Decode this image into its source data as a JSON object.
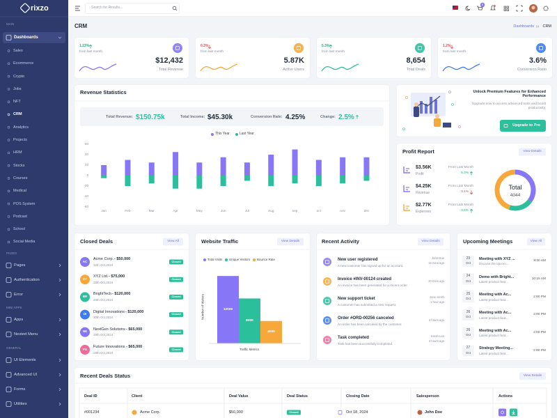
{
  "sidebar": {
    "logo": "rixzo",
    "main": {
      "title": "MAIN",
      "item": "Dashboards",
      "children": [
        "Sales",
        "Ecommerce",
        "Crypto",
        "Jobs",
        "NFT",
        "CRM",
        "Analytics",
        "Projects",
        "HRM",
        "Stocks",
        "Courses",
        "Medical",
        "POS System",
        "Podcast",
        "School",
        "Social Media"
      ]
    },
    "groups": [
      {
        "title": "PAGES",
        "items": [
          "Pages",
          "Authentication",
          "Error"
        ]
      },
      {
        "title": "MINI APPS",
        "items": [
          "Apps",
          "Nested Menu"
        ]
      },
      {
        "title": "GENERAL",
        "items": [
          "UI Elements",
          "Advanced UI",
          "Forms",
          "Utilities"
        ]
      }
    ]
  },
  "header": {
    "search_placeholder": "Search for Results...",
    "cart_badge": "5"
  },
  "page": {
    "title": "CRM",
    "breadcrumb": [
      "Dashboards",
      "CRM"
    ]
  },
  "stats": [
    {
      "change": "1.23%",
      "direction": "up",
      "period": "from last month",
      "value": "$12,432",
      "label": "Total Revenue",
      "color": "#8777f6"
    },
    {
      "change": "0.3%",
      "direction": "down",
      "period": "from last month",
      "value": "5.87K",
      "label": "Active Users",
      "color": "#f7a83b"
    },
    {
      "change": "5.3%",
      "direction": "up",
      "period": "from last month",
      "value": "8,654",
      "label": "Total Deals",
      "color": "#2cbf9c"
    },
    {
      "change": "1.2%",
      "direction": "down",
      "period": "from last month",
      "value": "3.6%",
      "label": "Conversion Ratio",
      "color": "#3d7bf0"
    }
  ],
  "revenue": {
    "title": "Revenue Statistics",
    "summary": [
      {
        "label": "Total Revenue:",
        "value": "$150.75k",
        "color": "#2cbf9c"
      },
      {
        "label": "Total Income:",
        "value": "$45.30k",
        "color": "#1f2937"
      },
      {
        "label": "Conversion Rate:",
        "value": "4.25%",
        "color": "#1f2937"
      },
      {
        "label": "Change:",
        "value": "2.5%",
        "color": "#2cbf9c",
        "direction": "up"
      }
    ],
    "chart": {
      "type": "bar",
      "categories": [
        "Jan",
        "Feb",
        "Mar",
        "Apr",
        "May",
        "Jun",
        "Jul",
        "Aug",
        "sep",
        "oct",
        "nov",
        "dec"
      ],
      "series": [
        {
          "name": "This Year",
          "color": "#8777f6",
          "values": [
            20,
            30,
            25,
            45,
            25,
            35,
            25,
            40,
            50,
            30,
            35,
            35
          ]
        },
        {
          "name": "Last Year",
          "color": "#2cbf9c",
          "values": [
            -5,
            -20,
            -15,
            -25,
            -25,
            -20,
            -10,
            -20,
            -15,
            -20,
            -15,
            -10
          ]
        }
      ],
      "ylim": [
        -60,
        60
      ],
      "yticks": [
        60,
        40,
        20,
        0,
        -20,
        -40,
        -60
      ]
    }
  },
  "promo": {
    "title": "Unlock Premium Features for Enhanced Performance",
    "text": "Upgrade now to access advanced tools and boost productivity.",
    "button": "Upgrade to Pro"
  },
  "profit": {
    "title": "Profit Report",
    "action": "View Details",
    "items": [
      {
        "value": "$3.56K",
        "label": "Profit",
        "period": "From Last Month",
        "change": "5.3%",
        "direction": "up",
        "color": "#8777f6"
      },
      {
        "value": "$4.25K",
        "label": "Revenue",
        "period": "From Last Month",
        "change": "3.1%",
        "direction": "down",
        "color": "#8777f6"
      },
      {
        "value": "$2.77K",
        "label": "Expenses",
        "period": "From Last Month",
        "change": "3.6%",
        "direction": "up",
        "color": "#f7a83b"
      }
    ],
    "donut": {
      "type": "pie",
      "center_label": "Total",
      "center_value": "4044",
      "values": [
        35,
        20,
        45
      ],
      "colors": [
        "#8777f6",
        "#2cbf9c",
        "#f7a83b"
      ]
    }
  },
  "closed_deals": {
    "title": "Closed Deals",
    "action": "View All",
    "items": [
      {
        "initials": "AC",
        "name": "Acme Corp.",
        "amount": "- $50,000",
        "date": "12th Oct,2024",
        "status": "Closed",
        "color": "#8777f6"
      },
      {
        "initials": "XY",
        "name": "XYZ Ltd.",
        "amount": "- $75,000",
        "date": "13th Oct,2024",
        "status": "Closed",
        "color": "#f7a83b"
      },
      {
        "initials": "BR",
        "name": "BrightTech",
        "amount": "- $120,000",
        "date": "20th Oct,2024",
        "status": "Closed",
        "color": "#2cbf9c"
      },
      {
        "initials": "DI",
        "name": "Digital Innovations",
        "amount": "- $120,000",
        "date": "20th Oct,2024",
        "status": "Closed",
        "color": "#3d7bf0"
      },
      {
        "initials": "NE",
        "name": "NextGen Solutions",
        "amount": "- $65,000",
        "date": "19th Oct,2024",
        "status": "Closed",
        "color": "#8777f6"
      },
      {
        "initials": "FU",
        "name": "Future Innovations",
        "amount": "- $65,000",
        "date": "18th Oct,2024",
        "status": "Closed",
        "color": "#f06a9b"
      }
    ]
  },
  "traffic": {
    "title": "Website Traffic",
    "action": "View Details",
    "chart": {
      "type": "bar",
      "categories": [
        "Total Visits",
        "Unique Visitors",
        "Bounce Rate"
      ],
      "values": [
        12000,
        8000,
        4000
      ],
      "colors": [
        "#8777f6",
        "#2cbf9c",
        "#f7a83b"
      ],
      "ylim": [
        0,
        14000
      ],
      "y_label": "Number of Visitors",
      "x_label": "Traffic Metrics"
    }
  },
  "activity": {
    "title": "Recent Activity",
    "action": "View Details",
    "items": [
      {
        "title": "New user registered",
        "text": "A new customer has signed up for an account.",
        "user": "John Doe",
        "time": "15 mins ago",
        "color": "#8777f6"
      },
      {
        "title": "Invoice #INV-00124 created",
        "text": "An invoice has been generated for a recent order.",
        "time": "30 mins ago",
        "color": "#f7a83b"
      },
      {
        "title": "New support ticket",
        "text": "A customer has submitted a new request.",
        "user": "Jane Smith",
        "time": "1 hour ago",
        "color": "#2cbf9c"
      },
      {
        "title": "Order #ORD-00256 canceled",
        "text": "An order has been canceled by the customer.",
        "time": "2 hours ago",
        "color": "#3d7bf0"
      },
      {
        "title": "Task completed",
        "text": "Task has been successfully completed.",
        "user": "Sarah Lee",
        "time": "3 hours ago",
        "color": "#f06a9b"
      }
    ]
  },
  "meetings": {
    "title": "Upcoming Meetings",
    "action": "View All",
    "items": [
      {
        "day": "23",
        "month": "Oct",
        "title": "Meeting with XYZ ...",
        "text": "Discuss the upcom...",
        "time": "9:30 AM"
      },
      {
        "day": "24",
        "month": "Oct",
        "title": "Demo with Bright...",
        "text": "Latest product feat...",
        "time": "10:15 AM"
      },
      {
        "day": "25",
        "month": "Oct",
        "title": "Meeting with Ac...",
        "text": "Latest product feat...",
        "time": "2:00 PM"
      },
      {
        "day": "26",
        "month": "Oct",
        "title": "Meeting with Ac...",
        "text": "Latest product feat...",
        "time": "2:00 PM"
      },
      {
        "day": "26",
        "month": "Oct",
        "title": "Meeting with Ac...",
        "text": "Latest product feat...",
        "time": "2:00 PM"
      },
      {
        "day": "27",
        "month": "Oct",
        "title": "Strategy Meeting...",
        "text": "Latest product feat...",
        "time": "2:00 PM"
      }
    ]
  },
  "deals_table": {
    "title": "Recent Deals Status",
    "action": "View Details",
    "columns": [
      "Deal ID",
      "Client",
      "Deal Value",
      "Deal Status",
      "Closing Date",
      "Salesperson",
      "Actions"
    ],
    "rows": [
      [
        "#001234",
        "Acme Corp.",
        "$50,000",
        "Closed",
        "Oct 18, 2024",
        "John Doe"
      ]
    ]
  }
}
